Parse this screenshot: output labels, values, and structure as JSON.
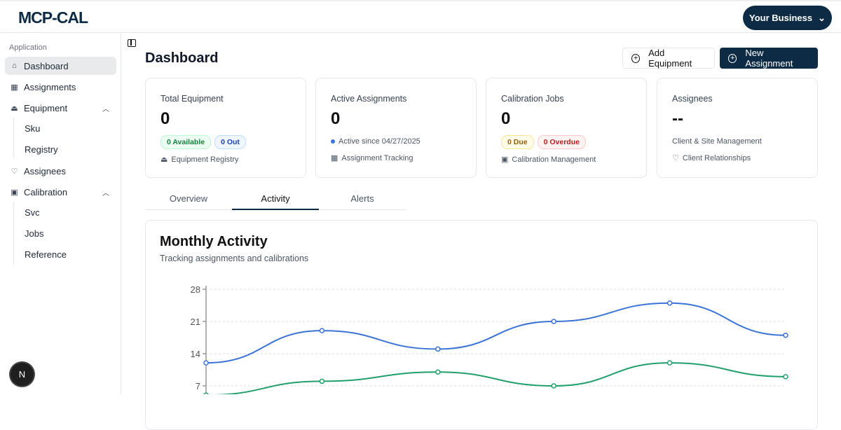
{
  "header": {
    "logo": "MCP-CAL",
    "business": "Your Business"
  },
  "sidebar": {
    "section": "Application",
    "items": [
      {
        "label": "Dashboard",
        "icon": "home-icon"
      },
      {
        "label": "Assignments",
        "icon": "calendar-clock-icon"
      },
      {
        "label": "Equipment",
        "icon": "hard-hat-icon",
        "children": [
          "Sku",
          "Registry"
        ]
      },
      {
        "label": "Assignees",
        "icon": "handshake-icon"
      },
      {
        "label": "Calibration",
        "icon": "clipboard-check-icon",
        "children": [
          "Svc",
          "Jobs",
          "Reference"
        ]
      }
    ],
    "avatar": "N"
  },
  "page": {
    "title": "Dashboard",
    "add_equipment": "Add Equipment",
    "new_assignment": "New Assignment"
  },
  "cards": [
    {
      "title": "Total Equipment",
      "value": "0",
      "badges": [
        "0 Available",
        "0 Out"
      ],
      "footer": "Equipment Registry"
    },
    {
      "title": "Active Assignments",
      "value": "0",
      "status": "Active since 04/27/2025",
      "footer": "Assignment Tracking"
    },
    {
      "title": "Calibration Jobs",
      "value": "0",
      "badges": [
        "0 Due",
        "0 Overdue"
      ],
      "footer": "Calibration Management"
    },
    {
      "title": "Assignees",
      "value": "--",
      "subtitle": "Client & Site Management",
      "footer": "Client Relationships"
    }
  ],
  "tabs": [
    "Overview",
    "Activity",
    "Alerts"
  ],
  "active_tab": "Activity",
  "chart": {
    "title": "Monthly Activity",
    "subtitle": "Tracking assignments and calibrations"
  },
  "chart_data": {
    "type": "line",
    "yticks": [
      7,
      14,
      21,
      28
    ],
    "ylim": [
      0,
      28
    ],
    "grid": true,
    "series": [
      {
        "color": "#3b73d6",
        "values": [
          12,
          19,
          15,
          21,
          25,
          18
        ]
      },
      {
        "color": "#22a06b",
        "values": [
          5,
          8,
          10,
          7,
          12,
          9
        ]
      }
    ]
  }
}
